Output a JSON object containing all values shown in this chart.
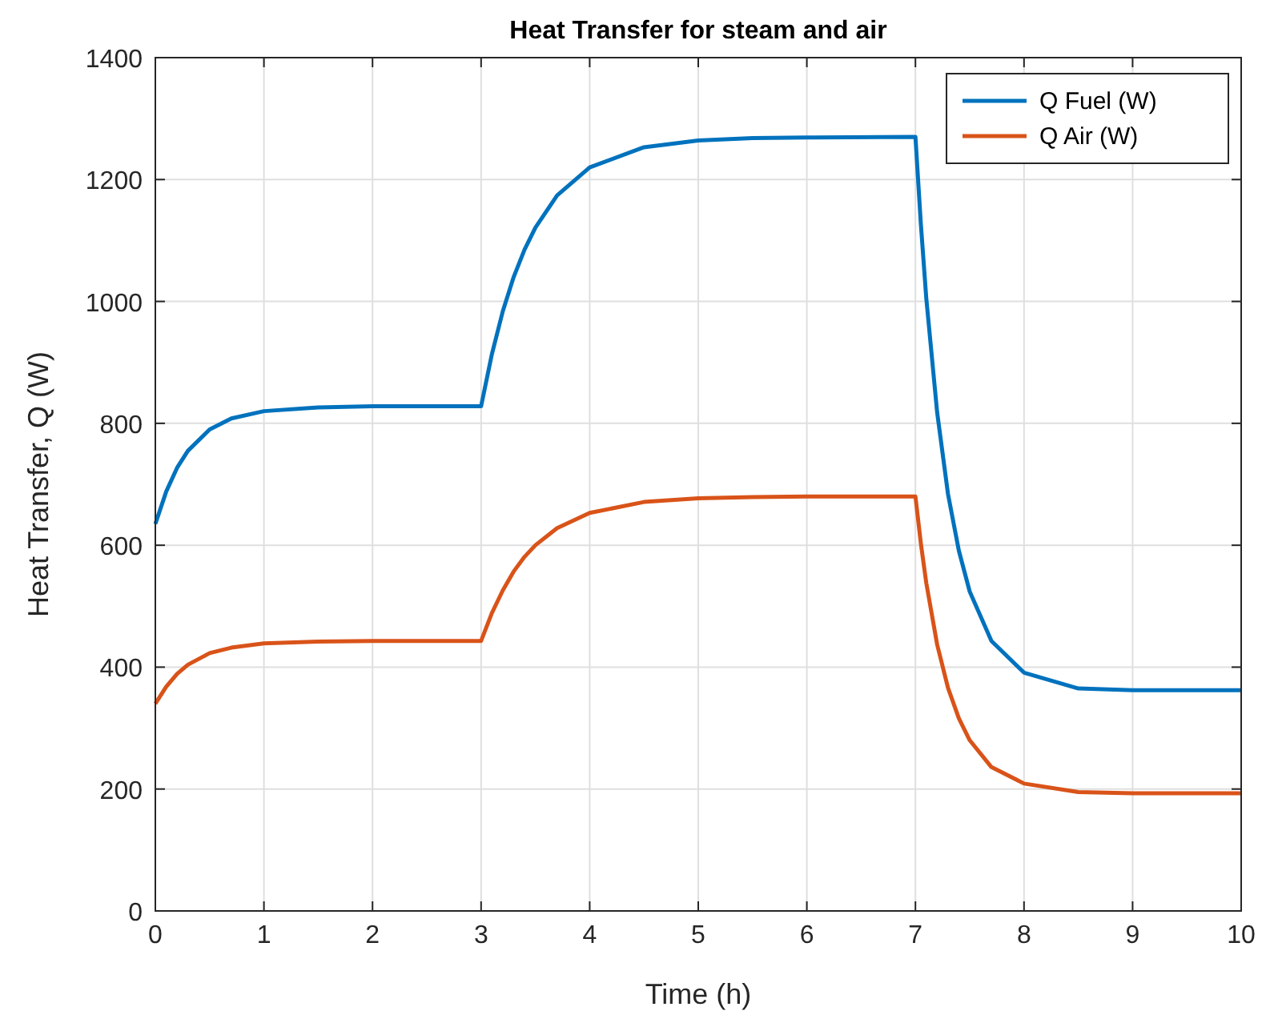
{
  "chart_data": {
    "type": "line",
    "title": "Heat Transfer for steam and air",
    "xlabel": "Time (h)",
    "ylabel": "Heat Transfer, Q (W)",
    "x": [
      0,
      0.1,
      0.2,
      0.3,
      0.5,
      0.7,
      1,
      1.5,
      2,
      2.5,
      3,
      3.1,
      3.2,
      3.3,
      3.4,
      3.5,
      3.7,
      4,
      4.5,
      5,
      5.5,
      6,
      7,
      7.05,
      7.1,
      7.2,
      7.3,
      7.4,
      7.5,
      7.7,
      8,
      8.5,
      9,
      10
    ],
    "series": [
      {
        "name": "Q Fuel (W)",
        "color": "#0072bd",
        "values": [
          635,
          688,
          727,
          755,
          790,
          808,
          820,
          826,
          828,
          828,
          828,
          914,
          984,
          1040,
          1085,
          1121,
          1174,
          1220,
          1253,
          1264,
          1268,
          1269,
          1270,
          1127,
          1005,
          818,
          684,
          591,
          524,
          443,
          391,
          365,
          362,
          362
        ]
      },
      {
        "name": "Q Air (W)",
        "color": "#d95319",
        "values": [
          340,
          368,
          389,
          404,
          423,
          432,
          439,
          442,
          443,
          443,
          443,
          489,
          526,
          557,
          581,
          600,
          628,
          653,
          671,
          677,
          679,
          680,
          680,
          603,
          538,
          437,
          366,
          316,
          280,
          236,
          209,
          195,
          193,
          193
        ]
      }
    ],
    "xlim": [
      0,
      10
    ],
    "xticks": [
      0,
      1,
      2,
      3,
      4,
      5,
      6,
      7,
      8,
      9,
      10
    ],
    "ylim": [
      0,
      1400
    ],
    "yticks": [
      0,
      200,
      400,
      600,
      800,
      1000,
      1200,
      1400
    ],
    "grid": true,
    "legend": "top right",
    "line_style": "solid",
    "marker": "none"
  }
}
